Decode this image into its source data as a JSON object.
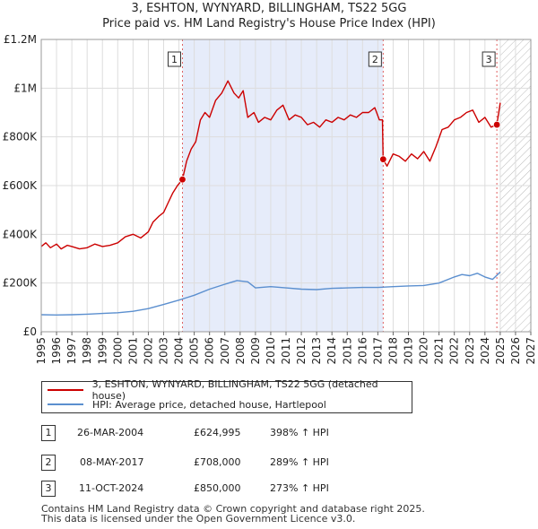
{
  "chart_data": {
    "type": "line",
    "title": "3, ESHTON, WYNYARD, BILLINGHAM, TS22 5GG",
    "subtitle": "Price paid vs. HM Land Registry's House Price Index (HPI)",
    "xlim": [
      1995,
      2027
    ],
    "ylim": [
      0,
      1200000
    ],
    "x_ticks": [
      "1995",
      "1996",
      "1997",
      "1998",
      "1999",
      "2000",
      "2001",
      "2002",
      "2003",
      "2004",
      "2005",
      "2006",
      "2007",
      "2008",
      "2009",
      "2010",
      "2011",
      "2012",
      "2013",
      "2014",
      "2015",
      "2016",
      "2017",
      "2018",
      "2019",
      "2020",
      "2021",
      "2022",
      "2023",
      "2024",
      "2025",
      "2026",
      "2027"
    ],
    "y_ticks": [
      {
        "value": 0,
        "label": "£0"
      },
      {
        "value": 200000,
        "label": "£200K"
      },
      {
        "value": 400000,
        "label": "£400K"
      },
      {
        "value": 600000,
        "label": "£600K"
      },
      {
        "value": 800000,
        "label": "£800K"
      },
      {
        "value": 1000000,
        "label": "£1M"
      },
      {
        "value": 1200000,
        "label": "£1.2M"
      }
    ],
    "series": [
      {
        "name": "3, ESHTON, WYNYARD, BILLINGHAM, TS22 5GG (detached house)",
        "color": "#cc0000",
        "x": [
          1995.0,
          1995.3,
          1995.6,
          1996.0,
          1996.3,
          1996.7,
          1997.0,
          1997.5,
          1998.0,
          1998.5,
          1999.0,
          1999.5,
          2000.0,
          2000.5,
          2001.0,
          2001.5,
          2002.0,
          2002.3,
          2002.7,
          2003.0,
          2003.3,
          2003.6,
          2003.9,
          2004.23,
          2004.5,
          2004.8,
          2005.1,
          2005.4,
          2005.7,
          2006.0,
          2006.4,
          2006.8,
          2007.2,
          2007.6,
          2007.9,
          2008.2,
          2008.5,
          2008.9,
          2009.2,
          2009.6,
          2010.0,
          2010.4,
          2010.8,
          2011.2,
          2011.6,
          2012.0,
          2012.4,
          2012.8,
          2013.2,
          2013.6,
          2014.0,
          2014.4,
          2014.8,
          2015.2,
          2015.6,
          2016.0,
          2016.4,
          2016.8,
          2017.1,
          2017.3,
          2017.35,
          2017.6,
          2018.0,
          2018.4,
          2018.8,
          2019.2,
          2019.6,
          2020.0,
          2020.4,
          2020.8,
          2021.2,
          2021.6,
          2022.0,
          2022.4,
          2022.8,
          2023.2,
          2023.6,
          2024.0,
          2024.4,
          2024.78,
          2025.0
        ],
        "values": [
          350000,
          365000,
          345000,
          360000,
          340000,
          355000,
          350000,
          340000,
          345000,
          360000,
          350000,
          355000,
          365000,
          390000,
          400000,
          385000,
          410000,
          450000,
          475000,
          490000,
          530000,
          570000,
          600000,
          624995,
          700000,
          750000,
          780000,
          870000,
          900000,
          880000,
          950000,
          980000,
          1030000,
          980000,
          960000,
          990000,
          880000,
          900000,
          860000,
          880000,
          870000,
          910000,
          930000,
          870000,
          890000,
          880000,
          850000,
          860000,
          840000,
          870000,
          860000,
          880000,
          870000,
          890000,
          880000,
          900000,
          900000,
          920000,
          870000,
          870000,
          708000,
          680000,
          730000,
          720000,
          700000,
          730000,
          710000,
          740000,
          700000,
          760000,
          830000,
          840000,
          870000,
          880000,
          900000,
          910000,
          860000,
          880000,
          840000,
          850000,
          940000
        ]
      },
      {
        "name": "HPI: Average price, detached house, Hartlepool",
        "color": "#5b8fcf",
        "x": [
          1995.0,
          1996.0,
          1997.0,
          1998.0,
          1999.0,
          2000.0,
          2001.0,
          2002.0,
          2003.0,
          2004.0,
          2004.5,
          2005.0,
          2006.0,
          2007.0,
          2007.8,
          2008.5,
          2009.0,
          2010.0,
          2011.0,
          2012.0,
          2013.0,
          2014.0,
          2015.0,
          2016.0,
          2017.0,
          2018.0,
          2019.0,
          2020.0,
          2021.0,
          2022.0,
          2022.5,
          2023.0,
          2023.5,
          2024.0,
          2024.5,
          2025.0
        ],
        "values": [
          70000,
          69000,
          70000,
          72000,
          75000,
          78000,
          84000,
          95000,
          112000,
          130000,
          140000,
          150000,
          175000,
          195000,
          210000,
          205000,
          180000,
          185000,
          180000,
          175000,
          173000,
          178000,
          180000,
          182000,
          182000,
          185000,
          188000,
          190000,
          200000,
          225000,
          235000,
          230000,
          240000,
          225000,
          215000,
          245000
        ]
      }
    ],
    "sales": [
      {
        "id": "1",
        "x": 2004.23,
        "value": 624995
      },
      {
        "id": "2",
        "x": 2017.35,
        "value": 708000
      },
      {
        "id": "3",
        "x": 2024.78,
        "value": 850000
      }
    ],
    "shaded_period": [
      2004.23,
      2017.35
    ],
    "hatched_from": 2025.0
  },
  "legend": {
    "property": "3, ESHTON, WYNYARD, BILLINGHAM, TS22 5GG (detached house)",
    "hpi": "HPI: Average price, detached house, Hartlepool"
  },
  "table": [
    {
      "num": "1",
      "date": "26-MAR-2004",
      "price": "£624,995",
      "hpi": "398% ↑ HPI"
    },
    {
      "num": "2",
      "date": "08-MAY-2017",
      "price": "£708,000",
      "hpi": "289% ↑ HPI"
    },
    {
      "num": "3",
      "date": "11-OCT-2024",
      "price": "£850,000",
      "hpi": "273% ↑ HPI"
    }
  ],
  "footer": {
    "line1": "Contains HM Land Registry data © Crown copyright and database right 2025.",
    "line2": "This data is licensed under the Open Government Licence v3.0."
  }
}
